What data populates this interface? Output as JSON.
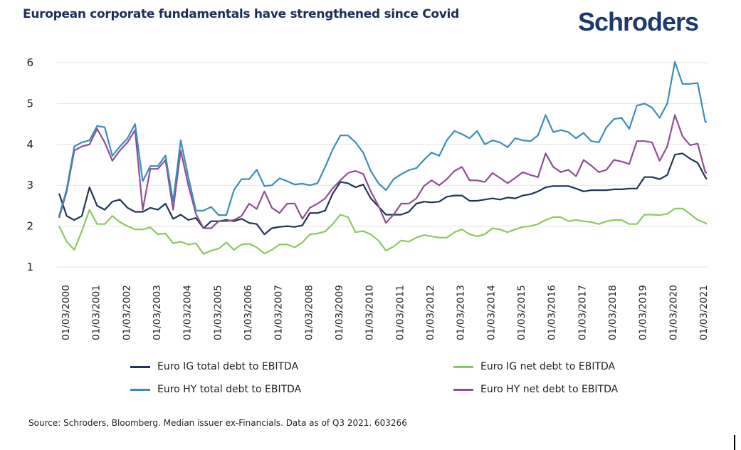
{
  "header": {
    "title": "European corporate fundamentals have strengthened since Covid",
    "logo": "Schroders"
  },
  "footer": {
    "source": "Source: Schroders, Bloomberg. Median issuer ex-Financials. Data as of Q3 2021. 603266"
  },
  "chart_data": {
    "type": "line",
    "title": "European corporate fundamentals have strengthened since Covid",
    "xlabel": "",
    "ylabel": "",
    "ylim": [
      1,
      6
    ],
    "yticks": [
      1,
      2,
      3,
      4,
      5,
      6
    ],
    "grid": true,
    "legend_position": "bottom",
    "frequency": "quarterly",
    "x_start": "2000-Q1",
    "x_tick_labels": [
      "01/03/2000",
      "01/03/2001",
      "01/03/2002",
      "01/03/2003",
      "01/03/2004",
      "01/03/2005",
      "01/03/2006",
      "01/03/2007",
      "01/03/2008",
      "01/03/2009",
      "01/03/2010",
      "01/03/2011",
      "01/03/2012",
      "01/03/2013",
      "01/03/2014",
      "01/03/2015",
      "01/03/2016",
      "01/03/2017",
      "01/03/2018",
      "01/03/2019",
      "01/03/2020",
      "01/03/2021"
    ],
    "series": [
      {
        "name": "Euro IG total debt to EBITDA",
        "color": "#1f3556",
        "values": [
          2.8,
          2.25,
          2.15,
          2.25,
          2.95,
          2.5,
          2.4,
          2.6,
          2.65,
          2.45,
          2.35,
          2.35,
          2.45,
          2.4,
          2.55,
          2.18,
          2.28,
          2.15,
          2.2,
          1.95,
          2.12,
          2.12,
          2.15,
          2.12,
          2.18,
          2.08,
          2.05,
          1.8,
          1.95,
          1.98,
          2.0,
          1.98,
          2.02,
          2.32,
          2.32,
          2.38,
          2.8,
          3.08,
          3.05,
          2.95,
          3.02,
          2.68,
          2.48,
          2.28,
          2.28,
          2.28,
          2.35,
          2.55,
          2.6,
          2.58,
          2.6,
          2.72,
          2.75,
          2.75,
          2.62,
          2.62,
          2.65,
          2.68,
          2.65,
          2.7,
          2.68,
          2.75,
          2.78,
          2.85,
          2.95,
          2.98,
          2.98,
          2.98,
          2.92,
          2.85,
          2.88,
          2.88,
          2.88,
          2.9,
          2.9,
          2.92,
          2.92,
          3.2,
          3.2,
          3.15,
          3.25,
          3.75,
          3.78,
          3.65,
          3.55,
          3.2,
          3.15
        ]
      },
      {
        "name": "Euro HY total debt to EBITDA",
        "color": "#3a8dbd",
        "values": [
          2.25,
          2.9,
          3.95,
          4.05,
          4.1,
          4.45,
          4.42,
          3.72,
          3.95,
          4.15,
          4.5,
          3.1,
          3.47,
          3.47,
          3.73,
          2.6,
          4.1,
          3.2,
          2.38,
          2.38,
          2.47,
          2.27,
          2.27,
          2.88,
          3.15,
          3.15,
          3.38,
          2.98,
          3.0,
          3.17,
          3.1,
          3.02,
          3.04,
          3.0,
          3.05,
          3.45,
          3.88,
          4.22,
          4.22,
          4.05,
          3.8,
          3.35,
          3.05,
          2.88,
          3.15,
          3.27,
          3.37,
          3.42,
          3.62,
          3.8,
          3.72,
          4.1,
          4.33,
          4.25,
          4.15,
          4.33,
          4.0,
          4.1,
          4.05,
          3.93,
          4.15,
          4.1,
          4.08,
          4.22,
          4.72,
          4.3,
          4.35,
          4.3,
          4.15,
          4.28,
          4.08,
          4.05,
          4.42,
          4.62,
          4.65,
          4.38,
          4.95,
          5.0,
          4.9,
          4.65,
          5.0,
          6.02,
          5.48,
          5.48,
          5.5,
          4.55,
          4.55
        ]
      },
      {
        "name": "Euro IG net debt to EBITDA",
        "color": "#8cc861",
        "values": [
          2.0,
          1.62,
          1.42,
          1.88,
          2.4,
          2.05,
          2.05,
          2.25,
          2.1,
          2.0,
          1.92,
          1.92,
          1.97,
          1.8,
          1.82,
          1.58,
          1.62,
          1.55,
          1.58,
          1.32,
          1.4,
          1.45,
          1.6,
          1.42,
          1.55,
          1.57,
          1.48,
          1.33,
          1.42,
          1.55,
          1.55,
          1.48,
          1.6,
          1.8,
          1.82,
          1.87,
          2.05,
          2.28,
          2.22,
          1.85,
          1.88,
          1.8,
          1.65,
          1.4,
          1.5,
          1.65,
          1.62,
          1.72,
          1.78,
          1.75,
          1.72,
          1.72,
          1.85,
          1.92,
          1.8,
          1.75,
          1.8,
          1.95,
          1.92,
          1.85,
          1.92,
          1.98,
          2.0,
          2.05,
          2.15,
          2.22,
          2.22,
          2.12,
          2.15,
          2.12,
          2.1,
          2.05,
          2.12,
          2.15,
          2.15,
          2.05,
          2.05,
          2.28,
          2.28,
          2.27,
          2.3,
          2.43,
          2.43,
          2.3,
          2.15,
          2.08,
          2.05
        ]
      },
      {
        "name": "Euro HY net debt to EBITDA",
        "color": "#8e4f93",
        "values": [
          2.2,
          2.85,
          3.85,
          3.95,
          4.0,
          4.38,
          4.05,
          3.6,
          3.85,
          4.05,
          4.35,
          2.4,
          3.4,
          3.4,
          3.62,
          2.4,
          3.85,
          3.0,
          2.3,
          1.95,
          1.95,
          2.12,
          2.12,
          2.15,
          2.25,
          2.55,
          2.42,
          2.85,
          2.45,
          2.32,
          2.55,
          2.55,
          2.18,
          2.45,
          2.55,
          2.68,
          2.93,
          3.12,
          3.3,
          3.35,
          3.28,
          2.85,
          2.5,
          2.08,
          2.28,
          2.55,
          2.55,
          2.68,
          2.98,
          3.12,
          3.0,
          3.15,
          3.35,
          3.45,
          3.12,
          3.12,
          3.08,
          3.3,
          3.18,
          3.05,
          3.18,
          3.32,
          3.25,
          3.2,
          3.78,
          3.45,
          3.32,
          3.38,
          3.22,
          3.62,
          3.48,
          3.32,
          3.38,
          3.62,
          3.58,
          3.52,
          4.08,
          4.08,
          4.05,
          3.6,
          3.95,
          4.72,
          4.2,
          3.98,
          4.02,
          3.32,
          3.3
        ]
      }
    ]
  },
  "legend": [
    {
      "label": "Euro IG total debt to EBITDA",
      "color": "#1f3556"
    },
    {
      "label": "Euro IG net debt to EBITDA",
      "color": "#8cc861"
    },
    {
      "label": "Euro HY total debt to EBITDA",
      "color": "#3a8dbd"
    },
    {
      "label": "Euro HY net debt to EBITDA",
      "color": "#8e4f93"
    }
  ]
}
